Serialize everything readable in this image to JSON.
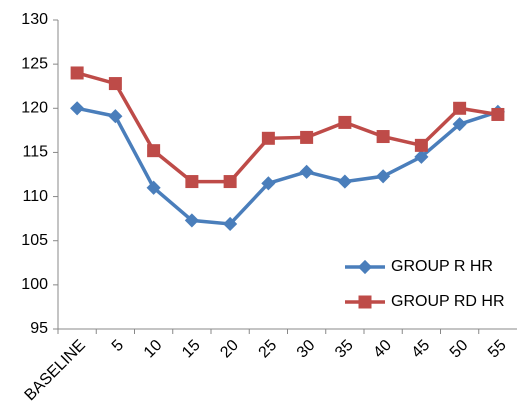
{
  "chart_data": {
    "type": "line",
    "categories": [
      "BASELINE",
      "5",
      "10",
      "15",
      "20",
      "25",
      "30",
      "35",
      "40",
      "45",
      "50",
      "55"
    ],
    "series": [
      {
        "name": "GROUP R HR",
        "color": "#4a7ebb",
        "values": [
          120,
          119.1,
          111,
          107.3,
          106.9,
          111.5,
          112.8,
          111.7,
          112.3,
          114.5,
          118.2,
          119.6
        ]
      },
      {
        "name": "GROUP RD HR",
        "color": "#be4b48",
        "values": [
          124,
          122.8,
          115.2,
          111.7,
          111.7,
          116.6,
          116.7,
          118.4,
          116.8,
          115.8,
          120,
          119.3
        ]
      }
    ],
    "ylim": [
      95,
      130
    ],
    "yticks": [
      95,
      100,
      105,
      110,
      115,
      120,
      125,
      130
    ],
    "grid": false,
    "legend": "lower right"
  }
}
